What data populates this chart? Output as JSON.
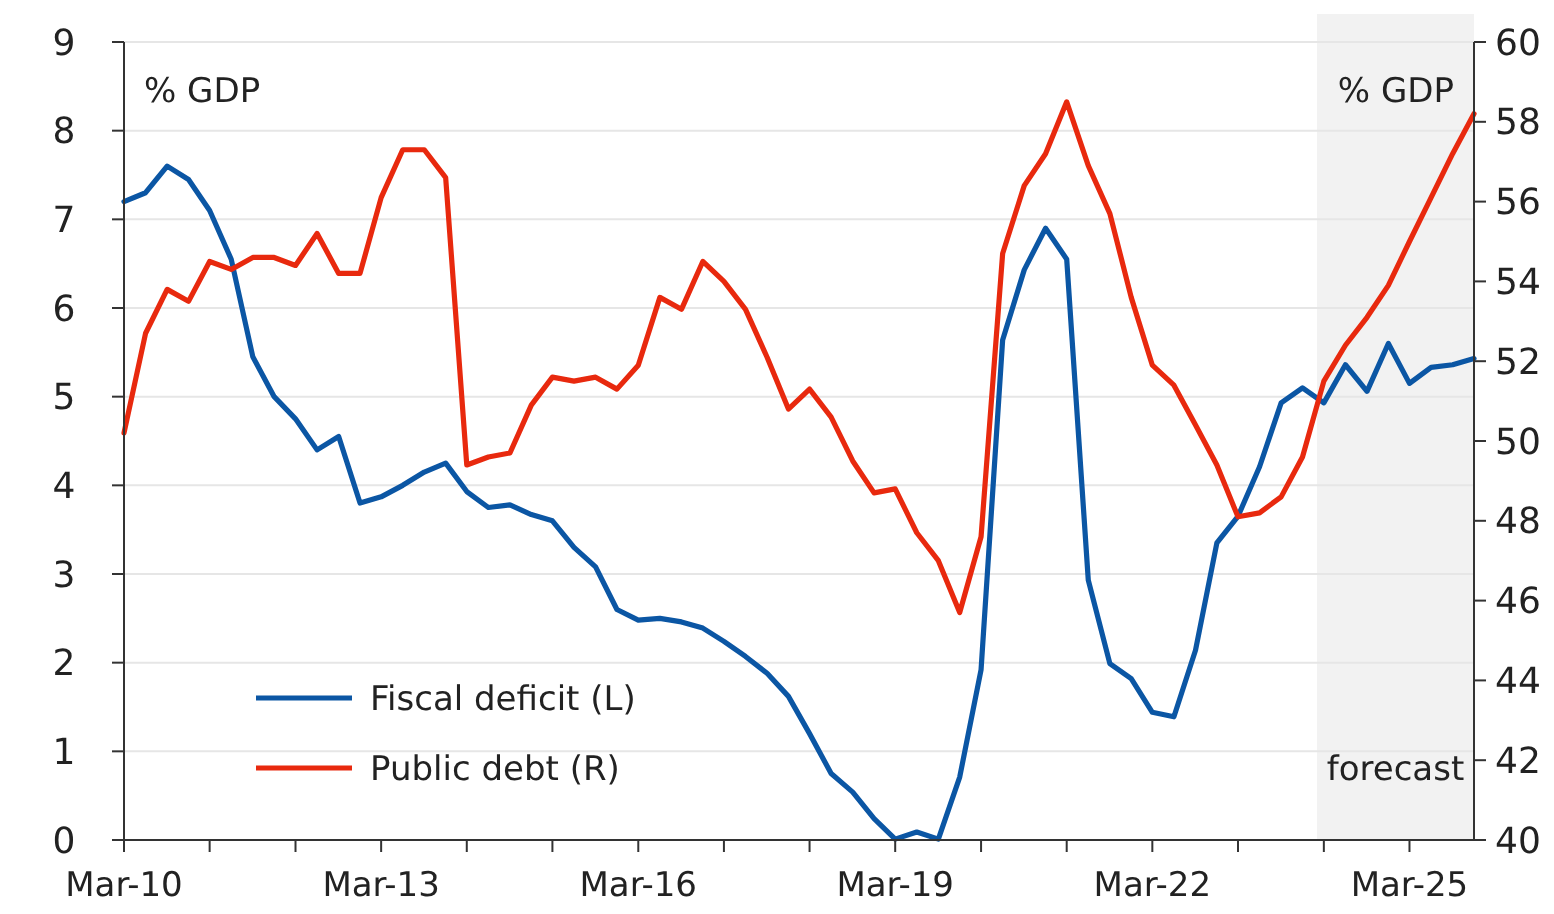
{
  "chart_data": {
    "type": "line",
    "x": [
      "2010-03",
      "2010-06",
      "2010-09",
      "2010-12",
      "2011-03",
      "2011-06",
      "2011-09",
      "2011-12",
      "2012-03",
      "2012-06",
      "2012-09",
      "2012-12",
      "2013-03",
      "2013-06",
      "2013-09",
      "2013-12",
      "2014-03",
      "2014-06",
      "2014-09",
      "2014-12",
      "2015-03",
      "2015-06",
      "2015-09",
      "2015-12",
      "2016-03",
      "2016-06",
      "2016-09",
      "2016-12",
      "2017-03",
      "2017-06",
      "2017-09",
      "2017-12",
      "2018-03",
      "2018-06",
      "2018-09",
      "2018-12",
      "2019-03",
      "2019-06",
      "2019-09",
      "2019-12",
      "2020-03",
      "2020-06",
      "2020-09",
      "2020-12",
      "2021-03",
      "2021-06",
      "2021-09",
      "2021-12",
      "2022-03",
      "2022-06",
      "2022-09",
      "2022-12",
      "2023-03",
      "2023-06",
      "2023-09",
      "2023-12",
      "2024-03",
      "2024-06",
      "2024-09",
      "2024-12",
      "2025-03",
      "2025-06",
      "2025-09",
      "2025-12"
    ],
    "series": [
      {
        "name": "Fiscal deficit (L)",
        "color": "#0b56a4",
        "values": [
          7.2,
          7.3,
          7.6,
          7.45,
          7.1,
          6.55,
          5.45,
          5.0,
          4.75,
          4.4,
          4.55,
          3.8,
          3.87,
          4.0,
          4.15,
          4.25,
          3.93,
          3.75,
          3.78,
          3.67,
          3.6,
          3.3,
          3.08,
          2.6,
          2.48,
          2.5,
          2.46,
          2.39,
          2.24,
          2.07,
          1.88,
          1.62,
          1.2,
          0.75,
          0.54,
          0.24,
          0.01,
          0.09,
          0.01,
          0.71,
          1.92,
          5.64,
          6.43,
          6.9,
          6.55,
          2.93,
          1.99,
          1.82,
          1.44,
          1.39,
          2.14,
          3.35,
          3.65,
          4.21,
          4.93,
          5.1,
          4.93,
          5.36,
          5.06,
          5.6,
          5.15,
          5.33,
          5.36,
          5.43
        ]
      },
      {
        "name": "Public debt (R)",
        "color": "#e8290e",
        "axis": "y2",
        "values": [
          50.2,
          52.7,
          53.8,
          53.5,
          54.5,
          54.3,
          54.6,
          54.6,
          54.4,
          55.2,
          54.2,
          54.2,
          56.1,
          57.3,
          57.3,
          56.6,
          49.4,
          49.6,
          49.7,
          50.9,
          51.6,
          51.5,
          51.6,
          51.3,
          51.9,
          53.6,
          53.3,
          54.5,
          54.0,
          53.3,
          52.1,
          50.8,
          51.3,
          50.6,
          49.5,
          48.7,
          48.8,
          47.7,
          47.0,
          45.7,
          47.6,
          54.7,
          56.4,
          57.2,
          58.5,
          56.9,
          55.7,
          53.6,
          51.9,
          51.4,
          50.4,
          49.4,
          48.1,
          48.2,
          48.6,
          49.6,
          51.5,
          52.4,
          53.1,
          53.9,
          55.0,
          56.1,
          57.2,
          58.2
        ]
      }
    ],
    "xlim": [
      "2010-03",
      "2025-12"
    ],
    "xticks": [
      {
        "value": "2010-03",
        "label": "Mar-10"
      },
      {
        "value": "2011-03",
        "label": null
      },
      {
        "value": "2012-03",
        "label": null
      },
      {
        "value": "2013-03",
        "label": "Mar-13"
      },
      {
        "value": "2014-03",
        "label": null
      },
      {
        "value": "2015-03",
        "label": null
      },
      {
        "value": "2016-03",
        "label": "Mar-16"
      },
      {
        "value": "2017-03",
        "label": null
      },
      {
        "value": "2018-03",
        "label": null
      },
      {
        "value": "2019-03",
        "label": "Mar-19"
      },
      {
        "value": "2020-03",
        "label": null
      },
      {
        "value": "2021-03",
        "label": null
      },
      {
        "value": "2022-03",
        "label": "Mar-22"
      },
      {
        "value": "2023-03",
        "label": null
      },
      {
        "value": "2024-03",
        "label": null
      },
      {
        "value": "2025-03",
        "label": "Mar-25"
      }
    ],
    "ylim": [
      0,
      9
    ],
    "yticks": [
      0,
      1,
      2,
      3,
      4,
      5,
      6,
      7,
      8,
      9
    ],
    "y2lim": [
      40,
      60
    ],
    "y2ticks": [
      40,
      42,
      44,
      46,
      48,
      50,
      52,
      54,
      56,
      58,
      60
    ],
    "ylabel": "% GDP",
    "y2label": "% GDP",
    "bands": [
      {
        "axis": "x",
        "from": "2024-02",
        "to": "2025-12",
        "label": "forecast",
        "color": "#f2f2f2"
      }
    ],
    "grid": "y",
    "legend": "bottom left"
  }
}
